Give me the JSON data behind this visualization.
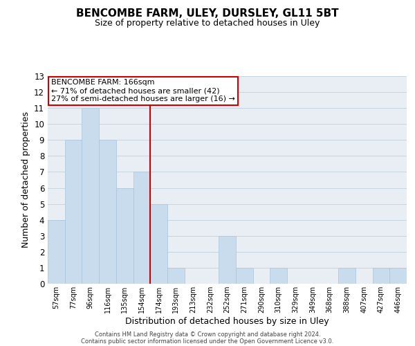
{
  "title": "BENCOMBE FARM, ULEY, DURSLEY, GL11 5BT",
  "subtitle": "Size of property relative to detached houses in Uley",
  "xlabel": "Distribution of detached houses by size in Uley",
  "ylabel": "Number of detached properties",
  "bar_labels": [
    "57sqm",
    "77sqm",
    "96sqm",
    "116sqm",
    "135sqm",
    "154sqm",
    "174sqm",
    "193sqm",
    "213sqm",
    "232sqm",
    "252sqm",
    "271sqm",
    "290sqm",
    "310sqm",
    "329sqm",
    "349sqm",
    "368sqm",
    "388sqm",
    "407sqm",
    "427sqm",
    "446sqm"
  ],
  "bar_values": [
    4,
    9,
    11,
    9,
    6,
    7,
    5,
    1,
    0,
    0,
    3,
    1,
    0,
    1,
    0,
    0,
    0,
    1,
    0,
    1,
    1
  ],
  "bar_color": "#c8dced",
  "bar_edge_color": "#aac4db",
  "reference_line_color": "#cc0000",
  "ylim": [
    0,
    13
  ],
  "yticks": [
    0,
    1,
    2,
    3,
    4,
    5,
    6,
    7,
    8,
    9,
    10,
    11,
    12,
    13
  ],
  "annotation_title": "BENCOMBE FARM: 166sqm",
  "annotation_line1": "← 71% of detached houses are smaller (42)",
  "annotation_line2": "27% of semi-detached houses are larger (16) →",
  "annotation_box_color": "#ffffff",
  "annotation_box_edge": "#cc0000",
  "grid_color": "#c8d4de",
  "background_color": "#e8eef4",
  "footer_line1": "Contains HM Land Registry data © Crown copyright and database right 2024.",
  "footer_line2": "Contains public sector information licensed under the Open Government Licence v3.0."
}
